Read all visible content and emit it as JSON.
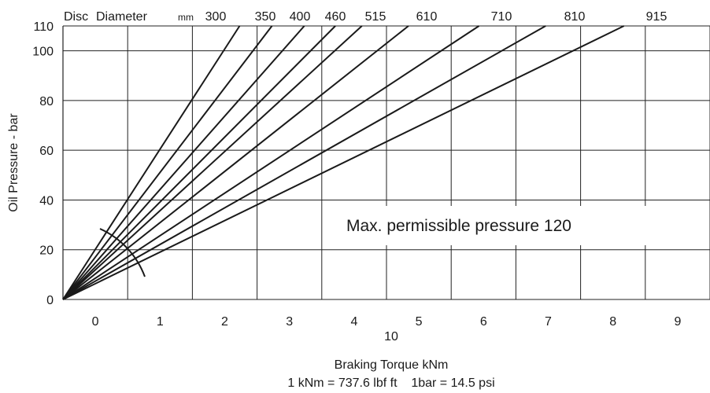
{
  "chart_data": {
    "type": "line",
    "header": {
      "word1": "Disc",
      "word2": "Diameter",
      "unit": "mm"
    },
    "ylabel": "Oil Pressure - bar",
    "xlabel": "Braking Torque kNm",
    "conversion_note": "1 kNm = 737.6 lbf ft    1bar = 14.5 psi",
    "x_multiplier_label": "10",
    "annotation": "Max. permissible pressure 120",
    "xlim": [
      -0.5,
      9.5
    ],
    "ylim": [
      0,
      110
    ],
    "x_ticks": [
      0,
      1,
      2,
      3,
      4,
      5,
      6,
      7,
      8,
      9
    ],
    "y_ticks": [
      0,
      20,
      40,
      60,
      80,
      100,
      110
    ],
    "grid": true,
    "series": [
      {
        "name": "300",
        "points": [
          [
            -0.5,
            0
          ],
          [
            2.23,
            110
          ]
        ]
      },
      {
        "name": "350",
        "points": [
          [
            -0.5,
            0
          ],
          [
            2.73,
            110
          ]
        ]
      },
      {
        "name": "400",
        "points": [
          [
            -0.5,
            0
          ],
          [
            3.23,
            110
          ]
        ]
      },
      {
        "name": "460",
        "points": [
          [
            -0.5,
            0
          ],
          [
            3.71,
            110
          ]
        ]
      },
      {
        "name": "515",
        "points": [
          [
            -0.5,
            0
          ],
          [
            4.12,
            110
          ]
        ]
      },
      {
        "name": "610",
        "points": [
          [
            -0.5,
            0
          ],
          [
            4.84,
            110
          ]
        ]
      },
      {
        "name": "710",
        "points": [
          [
            -0.5,
            0
          ],
          [
            5.93,
            110
          ]
        ]
      },
      {
        "name": "810",
        "points": [
          [
            -0.5,
            0
          ],
          [
            6.96,
            110
          ]
        ]
      },
      {
        "name": "915",
        "points": [
          [
            -0.5,
            0
          ],
          [
            8.17,
            110
          ]
        ]
      }
    ]
  }
}
